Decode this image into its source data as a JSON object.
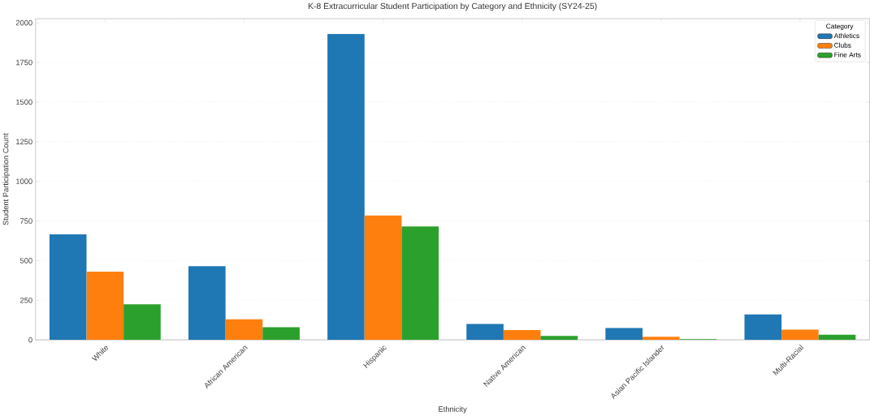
{
  "chart_data": {
    "type": "bar",
    "title": "K-8 Extracurricular Student Participation by Category and Ethnicity (SY24-25)",
    "xlabel": "Ethnicity",
    "ylabel": "Student Participation Count",
    "legend_title": "Category",
    "categories": [
      "White",
      "African American",
      "Hispanic",
      "Native American",
      "Asian Pacific Islander",
      "Multi-Racial"
    ],
    "series": [
      {
        "name": "Athletics",
        "color": "#1f77b4",
        "values": [
          665,
          465,
          1930,
          100,
          75,
          160
        ]
      },
      {
        "name": "Clubs",
        "color": "#ff7f0e",
        "values": [
          430,
          130,
          785,
          62,
          20,
          65
        ]
      },
      {
        "name": "Fine Arts",
        "color": "#2ca02c",
        "values": [
          225,
          80,
          715,
          25,
          5,
          32
        ]
      }
    ],
    "ylim": [
      0,
      2026
    ],
    "yticks": [
      0,
      250,
      500,
      750,
      1000,
      1250,
      1500,
      1750,
      2000
    ],
    "grid": "y",
    "legend": "top right"
  }
}
